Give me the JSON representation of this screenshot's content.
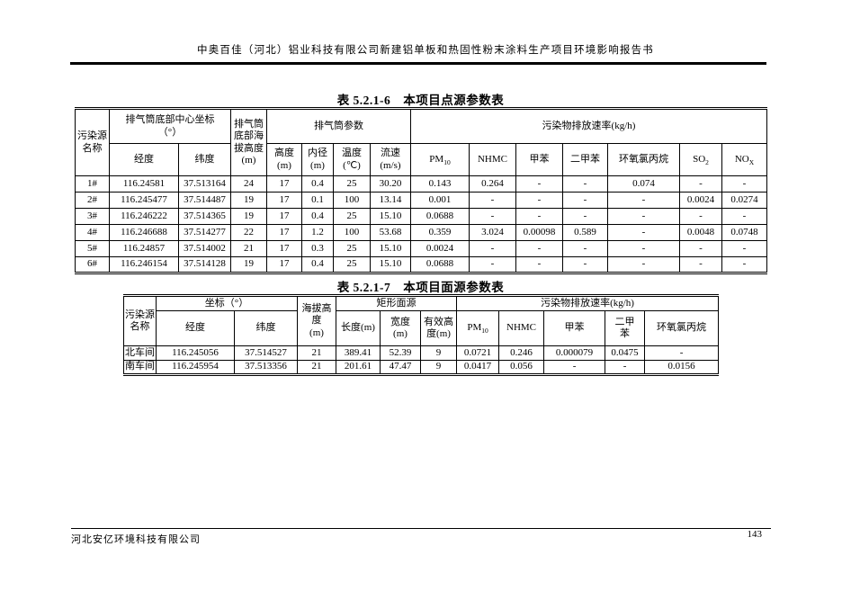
{
  "page": {
    "running_head": "中奥百佳（河北）铝业科技有限公司新建铝单板和热固性粉末涂料生产项目环境影响报告书",
    "footer_company": "河北安亿环境科技有限公司",
    "page_number": "143"
  },
  "table1": {
    "title": "表 5.2.1-6　本项目点源参数表",
    "headers": {
      "source": "污染源\n名称",
      "coord_group": "排气筒底部中心坐标\n（°）",
      "lon": "经度",
      "lat": "纬度",
      "base_elev": "排气筒\n底部海\n拔高度\n(m)",
      "stack_group": "排气筒参数",
      "height": "高度\n(m)",
      "diameter": "内径\n(m)",
      "temp": "温度\n(℃)",
      "velocity": "流速\n(m/s)",
      "rate_group": "污染物排放速率(kg/h)",
      "pm10": {
        "base": "PM",
        "sub": "10"
      },
      "nhmc": "NHMC",
      "toluene": "甲苯",
      "xylene": "二甲苯",
      "ech": "环氧氯丙烷",
      "so2": {
        "base": "SO",
        "sub": "2"
      },
      "nox": {
        "base": "NO",
        "sub": "X"
      }
    },
    "rows": [
      [
        "1#",
        "116.24581",
        "37.513164",
        "24",
        "17",
        "0.4",
        "25",
        "30.20",
        "0.143",
        "0.264",
        "-",
        "-",
        "0.074",
        "-",
        "-"
      ],
      [
        "2#",
        "116.245477",
        "37.514487",
        "19",
        "17",
        "0.1",
        "100",
        "13.14",
        "0.001",
        "-",
        "-",
        "-",
        "-",
        "0.0024",
        "0.0274"
      ],
      [
        "3#",
        "116.246222",
        "37.514365",
        "19",
        "17",
        "0.4",
        "25",
        "15.10",
        "0.0688",
        "-",
        "-",
        "-",
        "-",
        "-",
        "-"
      ],
      [
        "4#",
        "116.246688",
        "37.514277",
        "22",
        "17",
        "1.2",
        "100",
        "53.68",
        "0.359",
        "3.024",
        "0.00098",
        "0.589",
        "-",
        "0.0048",
        "0.0748"
      ],
      [
        "5#",
        "116.24857",
        "37.514002",
        "21",
        "17",
        "0.3",
        "25",
        "15.10",
        "0.0024",
        "-",
        "-",
        "-",
        "-",
        "-",
        "-"
      ],
      [
        "6#",
        "116.246154",
        "37.514128",
        "19",
        "17",
        "0.4",
        "25",
        "15.10",
        "0.0688",
        "-",
        "-",
        "-",
        "-",
        "-",
        "-"
      ]
    ]
  },
  "table2": {
    "title": "表 5.2.1-7　本项目面源参数表",
    "headers": {
      "source": "污染源\n名称",
      "coord_group": "坐标（°）",
      "lon": "经度",
      "lat": "纬度",
      "elev": "海拔高\n度\n(m)",
      "rect_group": "矩形面源",
      "length": "长度(m)",
      "width": "宽度\n(m)",
      "eff_height": "有效高\n度(m)",
      "rate_group": "污染物排放速率(kg/h)",
      "pm10": {
        "base": "PM",
        "sub": "10"
      },
      "nhmc": "NHMC",
      "toluene": "甲苯",
      "xylene": "二甲\n苯",
      "ech": "环氧氯丙烷"
    },
    "rows": [
      [
        "北车间",
        "116.245056",
        "37.514527",
        "21",
        "389.41",
        "52.39",
        "9",
        "0.0721",
        "0.246",
        "0.000079",
        "0.0475",
        "-"
      ],
      [
        "南车间",
        "116.245954",
        "37.513356",
        "21",
        "201.61",
        "47.47",
        "9",
        "0.0417",
        "0.056",
        "-",
        "-",
        "0.0156"
      ]
    ]
  }
}
